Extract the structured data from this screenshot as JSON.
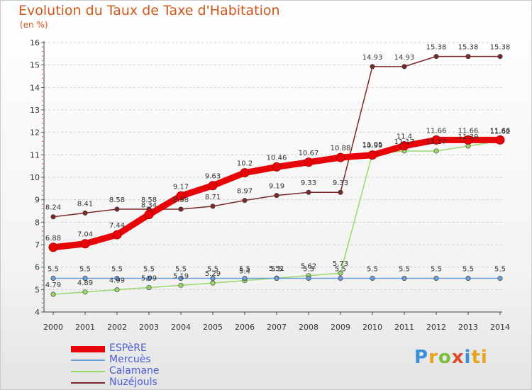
{
  "title": "Evolution du Taux de Taxe d'Habitation",
  "unit": "(en %)",
  "logo": [
    "P",
    "r",
    "o",
    "x",
    "i",
    "ti"
  ],
  "chart_data": {
    "type": "line",
    "title": "Evolution du Taux de Taxe d'Habitation",
    "ylabel": "(en %)",
    "xlabel": "",
    "x": [
      "2000",
      "2001",
      "2002",
      "2003",
      "2004",
      "2005",
      "2006",
      "2007",
      "2008",
      "2009",
      "2010",
      "2011",
      "2012",
      "2013",
      "2014"
    ],
    "ylim": [
      4,
      16
    ],
    "yticks": [
      "4",
      "5",
      "6",
      "7",
      "8",
      "9",
      "10",
      "11",
      "12",
      "13",
      "14",
      "15",
      "16"
    ],
    "grid": "horizontal dashed",
    "legend_position": "bottom-left",
    "series": [
      {
        "name": "ESPèRE",
        "color": "#e8050a",
        "values": [
          6.88,
          7.04,
          7.44,
          8.34,
          9.17,
          9.63,
          10.2,
          10.46,
          10.67,
          10.88,
          10.99,
          11.4,
          11.66,
          11.66,
          11.66
        ],
        "labels": [
          "6.88",
          "7.04",
          "7.44",
          "8.34",
          "9.17",
          "9.63",
          "10.2",
          "10.46",
          "10.67",
          "10.88",
          "10.99",
          "11.4",
          "11.66",
          "11.66",
          "11.66"
        ]
      },
      {
        "name": "Mercuès",
        "color": "#6a9fd8",
        "values": [
          5.5,
          5.5,
          5.5,
          5.5,
          5.5,
          5.5,
          5.5,
          5.5,
          5.5,
          5.5,
          5.5,
          5.5,
          5.5,
          5.5,
          5.5
        ],
        "labels": [
          "5.5",
          "5.5",
          "5.5",
          "5.5",
          "5.5",
          "5.5",
          "5.5",
          "5.5",
          "5.5",
          "5.5",
          "5.5",
          "5.5",
          "5.5",
          "5.5",
          "5.5"
        ]
      },
      {
        "name": "Calamane",
        "color": "#9ad86a",
        "values": [
          4.79,
          4.89,
          4.99,
          5.09,
          5.19,
          5.29,
          5.4,
          5.51,
          5.62,
          5.73,
          11.05,
          11.17,
          11.17,
          11.39,
          11.62
        ],
        "labels": [
          "4.79",
          "4.89",
          "4.99",
          "5.09",
          "5.19",
          "5.29",
          "5.4",
          "5.51",
          "5.62",
          "5.73",
          "11.05",
          "11.17",
          "11.17",
          "11.39",
          "11.62"
        ]
      },
      {
        "name": "Nuzéjouls",
        "color": "#7a2a2a",
        "values": [
          8.24,
          8.41,
          8.58,
          8.58,
          8.58,
          8.71,
          8.97,
          9.19,
          9.33,
          9.33,
          14.93,
          14.93,
          15.38,
          15.38,
          15.38
        ],
        "labels": [
          "8.24",
          "8.41",
          "8.58",
          "8.58",
          "8.58",
          "8.71",
          "8.97",
          "9.19",
          "9.33",
          "9.33",
          "14.93",
          "14.93",
          "15.38",
          "15.38",
          "15.38"
        ]
      }
    ]
  }
}
